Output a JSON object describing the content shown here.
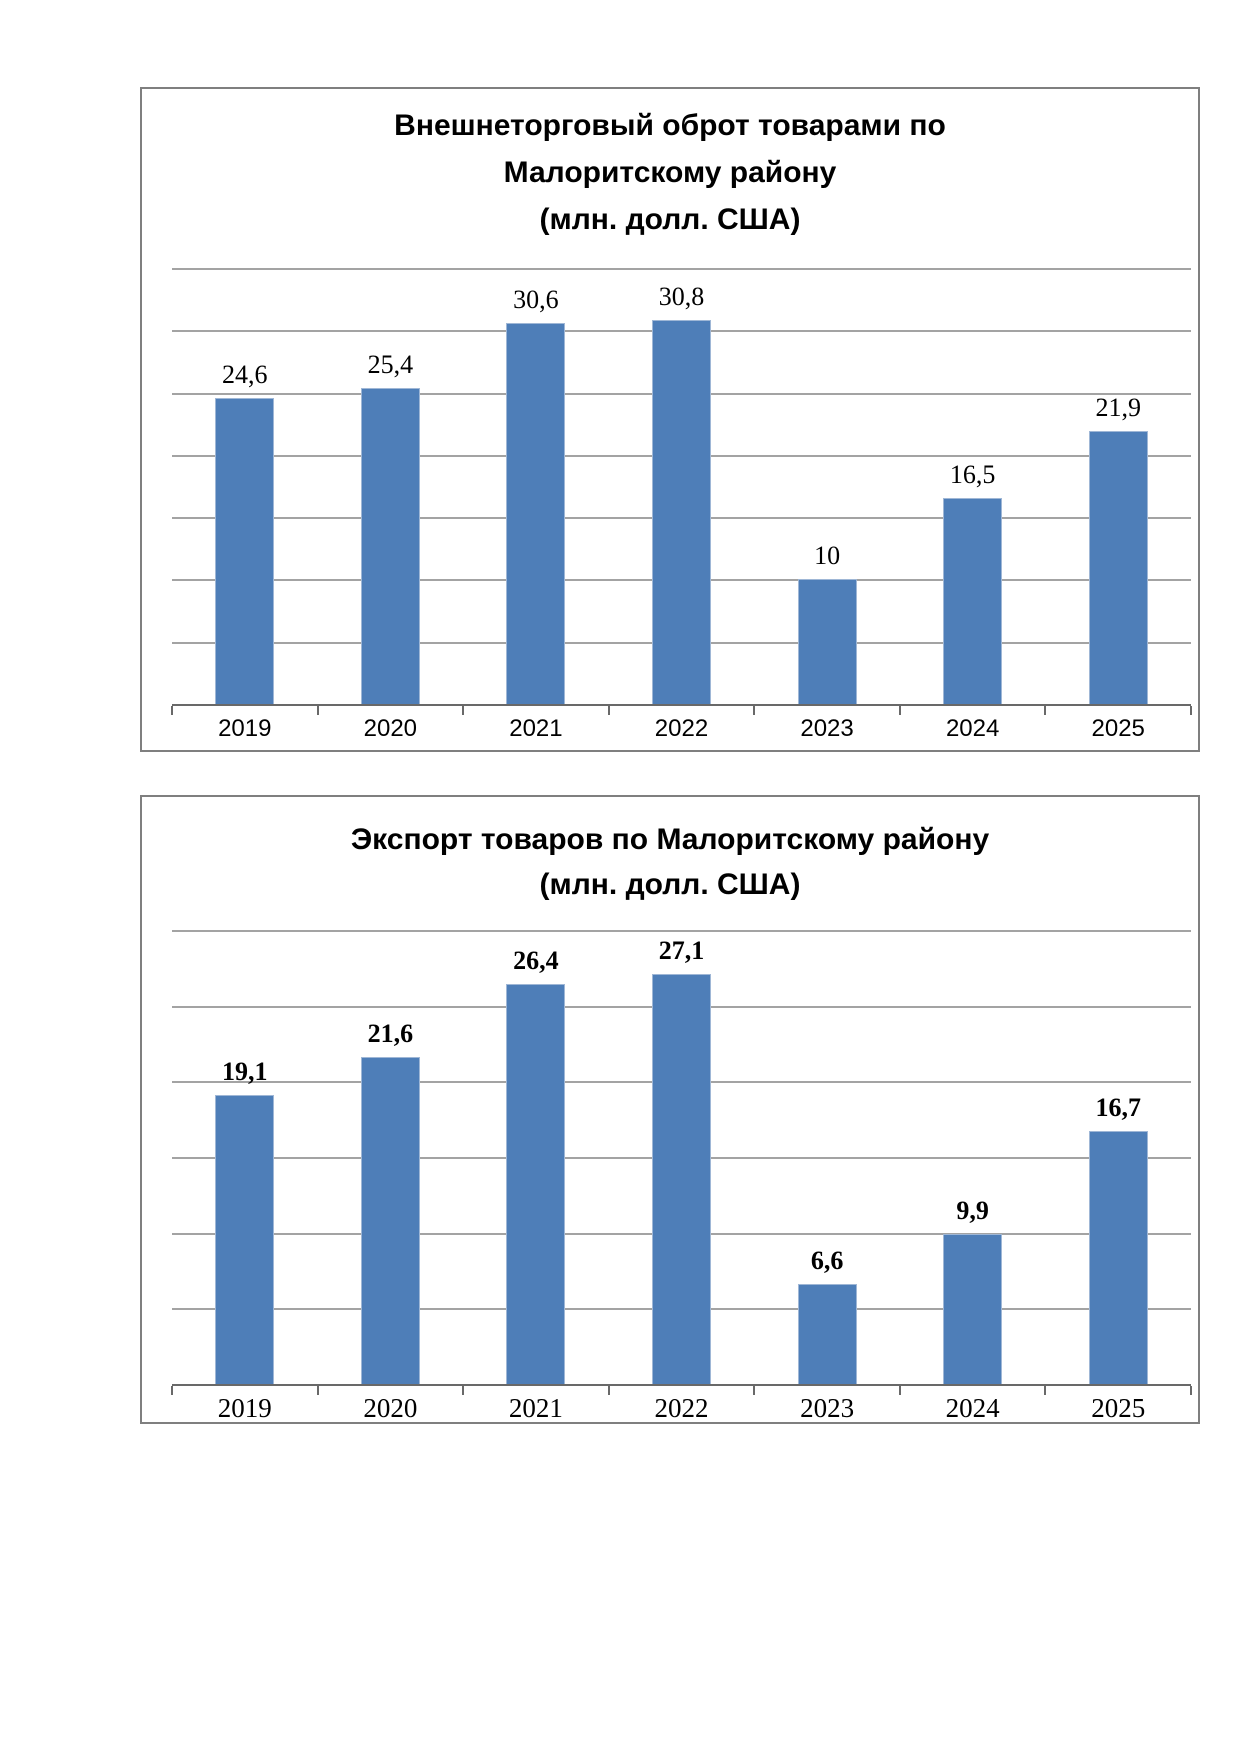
{
  "page": {
    "background": "#ffffff"
  },
  "chart_data": [
    {
      "type": "bar",
      "title": "Внешнеторговый оброт товарами по Малоритскому району (млн. долл. США)",
      "title_lines": [
        "Внешнеторговый оброт товарами по",
        "Малоритскому району",
        "(млн. долл. США)"
      ],
      "categories": [
        "2019",
        "2020",
        "2021",
        "2022",
        "2023",
        "2024",
        "2025"
      ],
      "values": [
        24.6,
        25.4,
        30.6,
        30.8,
        10,
        16.5,
        21.9
      ],
      "value_labels": [
        "24,6",
        "25,4",
        "30,6",
        "30,8",
        "10",
        "16,5",
        "21,9"
      ],
      "xlabel": "",
      "ylabel": "",
      "ylim": [
        0,
        35
      ],
      "grid_step": 5,
      "grid": "on",
      "legend": "none",
      "bar_color": "#4e7eb8",
      "gridline_color": "#a3a3a3",
      "axis_color": "#696969",
      "value_label_font": "serif-regular",
      "category_label_font": "sans"
    },
    {
      "type": "bar",
      "title": "Экспорт товаров по Малоритскому району (млн. долл. США)",
      "title_lines": [
        "Экспорт товаров по Малоритскому району",
        "(млн. долл. США)"
      ],
      "categories": [
        "2019",
        "2020",
        "2021",
        "2022",
        "2023",
        "2024",
        "2025"
      ],
      "values": [
        19.1,
        21.6,
        26.4,
        27.1,
        6.6,
        9.9,
        16.7
      ],
      "value_labels": [
        "19,1",
        "21,6",
        "26,4",
        "27,1",
        "6,6",
        "9,9",
        "16,7"
      ],
      "xlabel": "",
      "ylabel": "",
      "ylim": [
        0,
        30
      ],
      "grid_step": 5,
      "grid": "on",
      "legend": "none",
      "bar_color": "#4e7eb8",
      "gridline_color": "#a3a3a3",
      "axis_color": "#696969",
      "value_label_font": "serif-bold",
      "category_label_font": "serif"
    }
  ]
}
